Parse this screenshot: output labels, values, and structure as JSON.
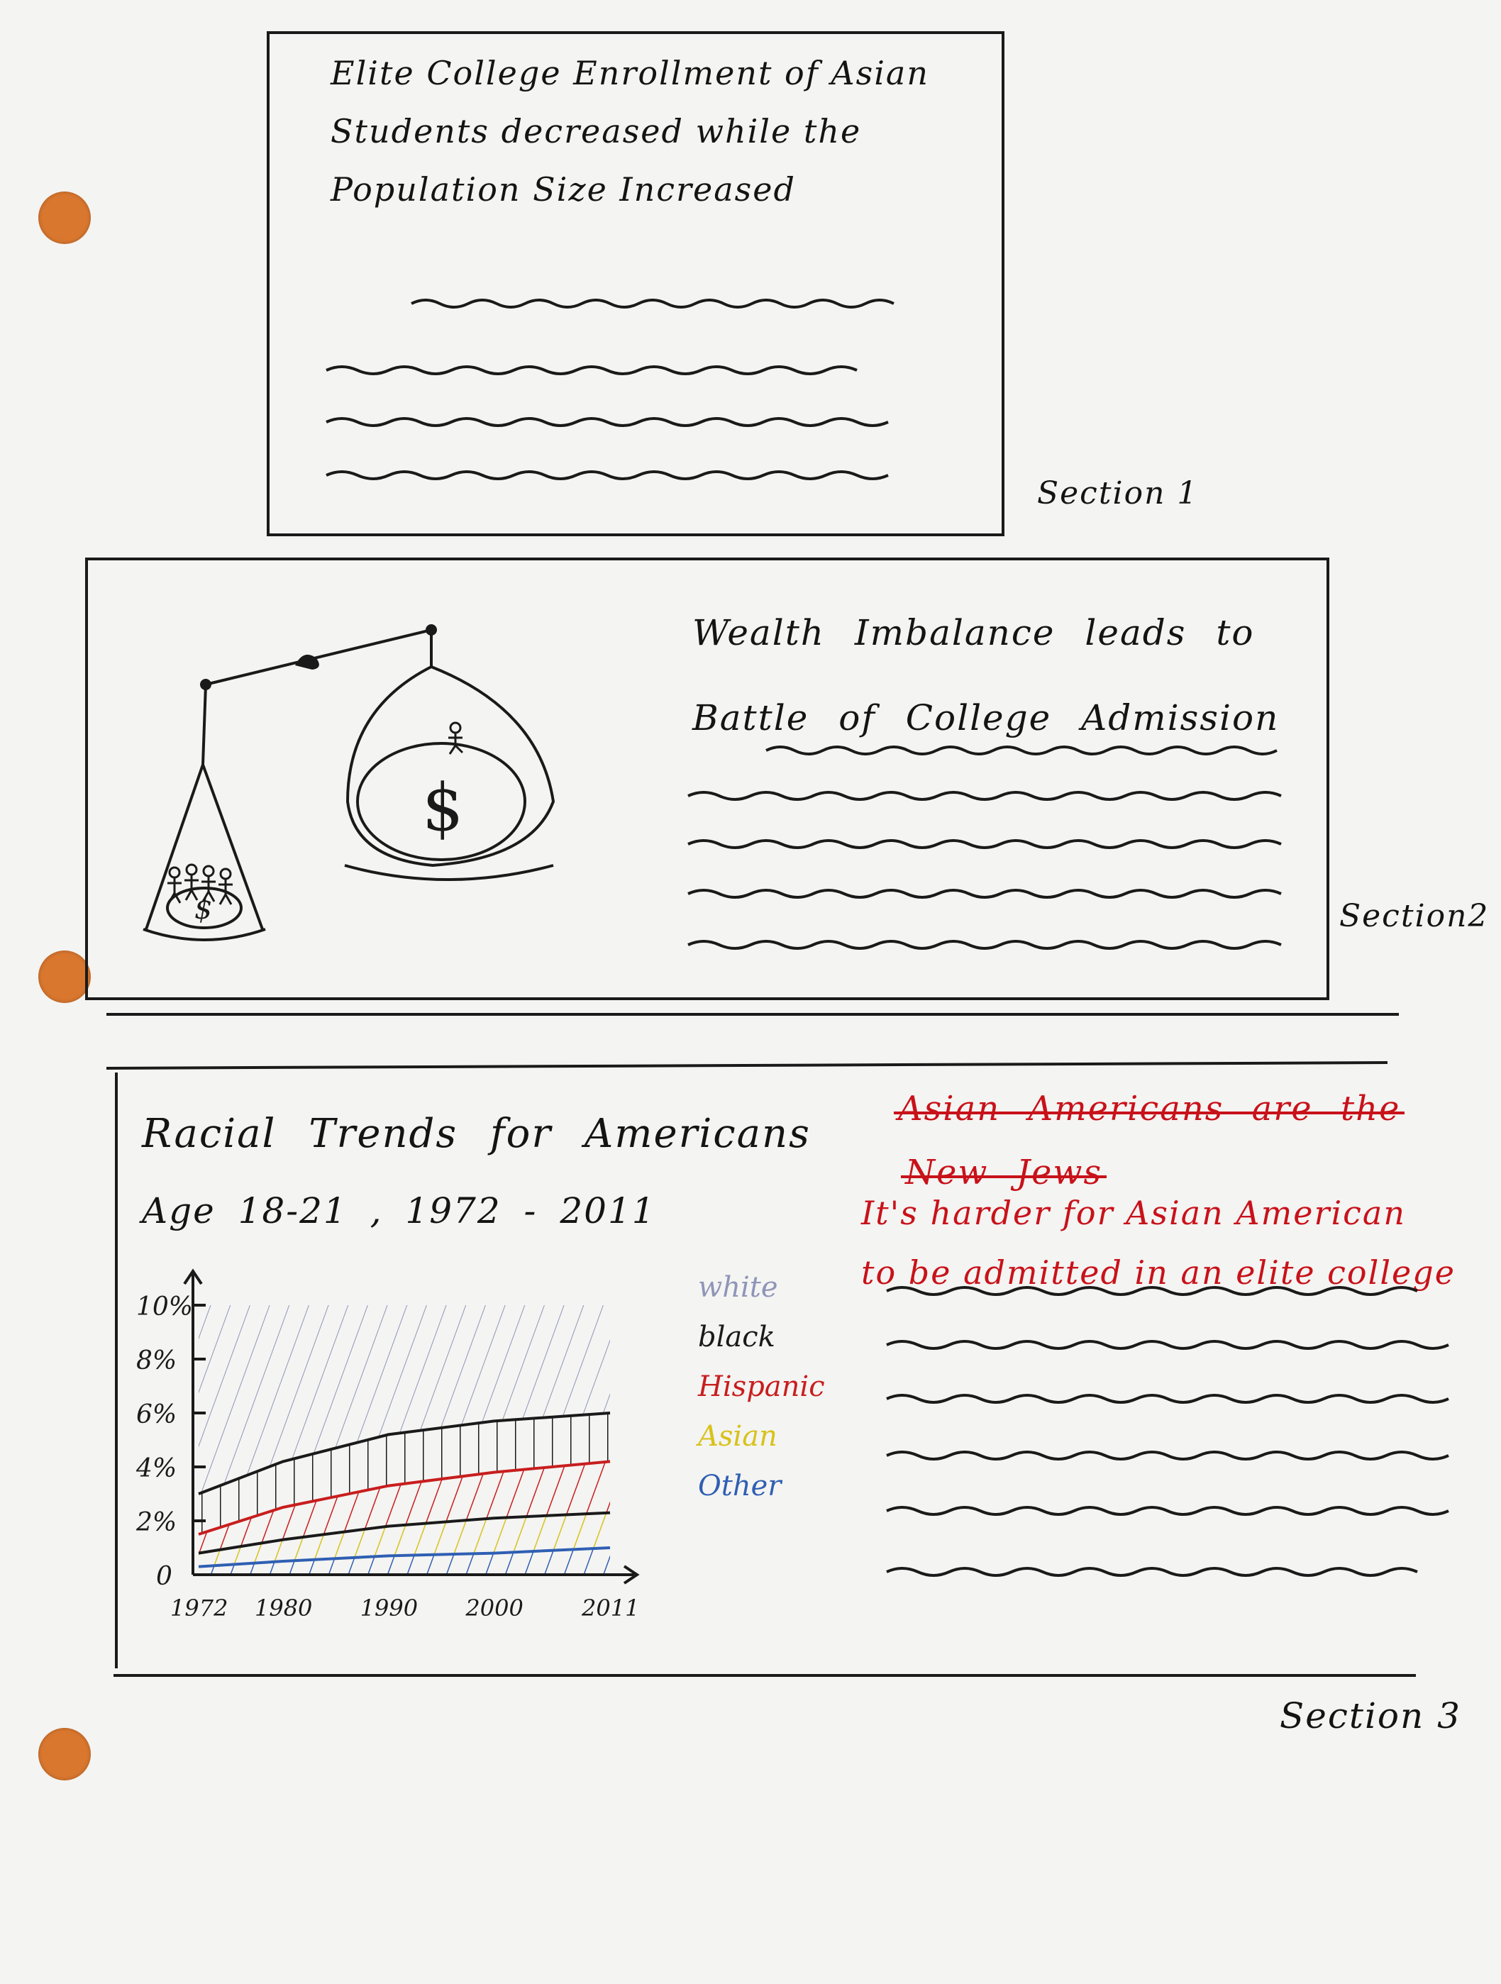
{
  "section1": {
    "title_lines": [
      "Elite College Enrollment of Asian",
      "Students decreased while the",
      "Population Size Increased"
    ],
    "label": "Section 1"
  },
  "section2": {
    "title_lines": [
      "Wealth Imbalance leads to",
      "Battle of College Admission"
    ],
    "label": "Section2",
    "icons": [
      "balance-scale-icon",
      "money-bag-icon",
      "dollar-sign-icon",
      "stick-figure-icon"
    ]
  },
  "section3": {
    "chart_title": "Racial Trends for Americans",
    "chart_subtitle": "Age 18-21 , 1972 - 2011",
    "struck_heading_line1": "Asian Americans are the",
    "struck_heading_line2": "New Jews",
    "red_heading_line1": "It's harder for Asian American",
    "red_heading_line2": "to be admitted in an elite college",
    "label": "Section 3"
  },
  "colors": {
    "ink": "#141414",
    "red_pen": "#c8121a",
    "hole": "#d9772f",
    "paper": "#f4f4f2"
  },
  "chart_data": {
    "type": "area",
    "x": [
      1972,
      1980,
      1990,
      2000,
      2011
    ],
    "x_tick_labels": [
      "1972",
      "1980",
      "1990",
      "2000",
      "2011"
    ],
    "y_tick_labels": [
      "0",
      "2%",
      "4%",
      "6%",
      "8%",
      "10%"
    ],
    "ylim": [
      0,
      10
    ],
    "series": [
      {
        "name": "white",
        "color": "#8f95b8",
        "values": [
          10,
          10,
          10,
          10,
          10
        ]
      },
      {
        "name": "black",
        "color": "#1a1a1a",
        "values": [
          3.0,
          4.2,
          5.2,
          5.7,
          6.0
        ]
      },
      {
        "name": "Hispanic",
        "color": "#c81e1e",
        "values": [
          1.5,
          2.5,
          3.3,
          3.8,
          4.2
        ]
      },
      {
        "name": "Asian",
        "color": "#d8c21a",
        "values": [
          0.8,
          1.3,
          1.8,
          2.1,
          2.3
        ]
      },
      {
        "name": "Other",
        "color": "#2f5fb3",
        "values": [
          0.3,
          0.5,
          0.7,
          0.8,
          1.0
        ]
      }
    ]
  }
}
